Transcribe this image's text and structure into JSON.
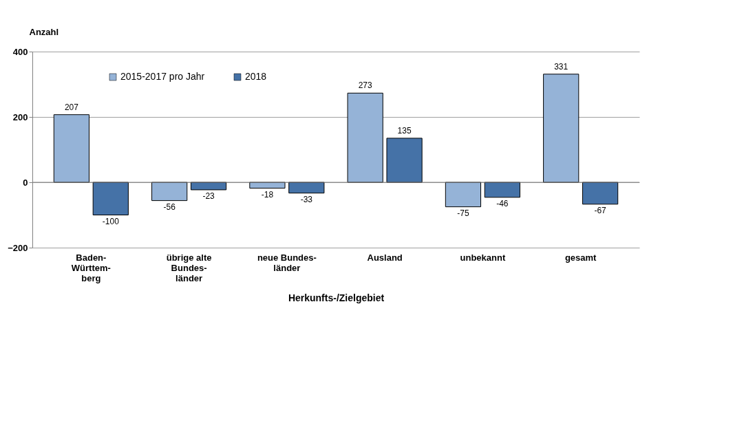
{
  "chart_data": {
    "type": "bar",
    "ylabel": "Anzahl",
    "xlabel": "Herkunfts-/Zielgebiet",
    "categories": [
      "Baden-\nWürttem-\nberg",
      "übrige alte\nBundes-\nländer",
      "neue Bundes-\nländer",
      "Ausland",
      "unbekannt",
      "gesamt"
    ],
    "series": [
      {
        "name": "2015-2017 pro Jahr",
        "color": "#95b3d7",
        "values": [
          207,
          -56,
          -18,
          273,
          -75,
          331
        ]
      },
      {
        "name": "2018",
        "color": "#4572a7",
        "values": [
          -100,
          -23,
          -33,
          135,
          -46,
          -67
        ]
      }
    ],
    "ylim": [
      -200,
      400
    ],
    "yticks": [
      -200,
      0,
      200,
      400
    ],
    "grid": "y",
    "legend": "top left",
    "data_labels": true
  }
}
